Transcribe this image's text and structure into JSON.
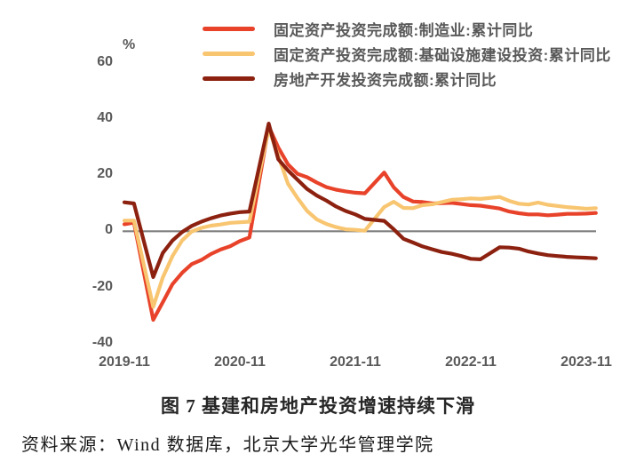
{
  "source": "资料来源：Wind 数据库，北京大学光华管理学院",
  "chart_data": {
    "type": "line",
    "title": "图 7 基建和房地产投资增速持续下滑",
    "ylabel": "%",
    "ylim": [
      -40,
      60
    ],
    "y_ticks": [
      60,
      40,
      20,
      0,
      -20,
      -40
    ],
    "x_tick_labels": [
      "2019-11",
      "2020-11",
      "2021-11",
      "2022-11",
      "2023-11"
    ],
    "x_tick_positions_months": [
      0,
      12,
      24,
      36,
      48
    ],
    "x_unit": "months since 2019-11 (January values omitted, cumulative YoY %)",
    "grid": "none (zero baseline only)",
    "legend_position": "top",
    "zero_line_color": "#7F7F7F",
    "series": [
      {
        "name": "固定资产投资完成额:制造业:累计同比",
        "color": "#E8432A",
        "points": [
          [
            0,
            2.5
          ],
          [
            1,
            3.1
          ],
          [
            3,
            -31.5
          ],
          [
            4,
            -25.2
          ],
          [
            5,
            -18.8
          ],
          [
            6,
            -14.8
          ],
          [
            7,
            -11.7
          ],
          [
            8,
            -10.2
          ],
          [
            9,
            -8.1
          ],
          [
            10,
            -6.5
          ],
          [
            11,
            -5.3
          ],
          [
            12,
            -3.5
          ],
          [
            13,
            -2.2
          ],
          [
            15,
            37.3
          ],
          [
            16,
            29.8
          ],
          [
            17,
            23.8
          ],
          [
            18,
            20.4
          ],
          [
            19,
            19.2
          ],
          [
            20,
            17.3
          ],
          [
            21,
            15.7
          ],
          [
            22,
            14.8
          ],
          [
            23,
            14.2
          ],
          [
            24,
            13.7
          ],
          [
            25,
            13.5
          ],
          [
            27,
            20.9
          ],
          [
            28,
            15.6
          ],
          [
            29,
            12.2
          ],
          [
            30,
            10.6
          ],
          [
            31,
            10.4
          ],
          [
            32,
            9.9
          ],
          [
            33,
            10.0
          ],
          [
            34,
            10.1
          ],
          [
            35,
            9.7
          ],
          [
            36,
            9.3
          ],
          [
            37,
            9.1
          ],
          [
            39,
            8.1
          ],
          [
            40,
            7.0
          ],
          [
            41,
            6.4
          ],
          [
            42,
            6.0
          ],
          [
            43,
            6.0
          ],
          [
            44,
            5.7
          ],
          [
            45,
            5.9
          ],
          [
            46,
            6.2
          ],
          [
            47,
            6.2
          ],
          [
            48,
            6.3
          ],
          [
            49,
            6.5
          ]
        ]
      },
      {
        "name": "固定资产投资完成额:基础设施建设投资:累计同比",
        "color": "#F8C571",
        "points": [
          [
            0,
            3.8
          ],
          [
            1,
            3.8
          ],
          [
            3,
            -26.9
          ],
          [
            4,
            -16.4
          ],
          [
            5,
            -8.8
          ],
          [
            6,
            -3.3
          ],
          [
            7,
            -0.1
          ],
          [
            8,
            1.2
          ],
          [
            9,
            2.0
          ],
          [
            10,
            2.4
          ],
          [
            11,
            3.0
          ],
          [
            12,
            3.2
          ],
          [
            13,
            3.4
          ],
          [
            15,
            36.6
          ],
          [
            16,
            26.8
          ],
          [
            17,
            16.9
          ],
          [
            18,
            11.8
          ],
          [
            19,
            7.2
          ],
          [
            20,
            4.2
          ],
          [
            21,
            2.6
          ],
          [
            22,
            1.5
          ],
          [
            23,
            0.7
          ],
          [
            24,
            0.5
          ],
          [
            25,
            0.2
          ],
          [
            27,
            8.6
          ],
          [
            28,
            10.5
          ],
          [
            29,
            8.3
          ],
          [
            30,
            8.2
          ],
          [
            31,
            9.3
          ],
          [
            32,
            9.6
          ],
          [
            33,
            10.4
          ],
          [
            34,
            11.2
          ],
          [
            35,
            11.4
          ],
          [
            36,
            11.7
          ],
          [
            37,
            11.5
          ],
          [
            39,
            12.2
          ],
          [
            40,
            10.8
          ],
          [
            41,
            9.8
          ],
          [
            42,
            9.5
          ],
          [
            43,
            10.2
          ],
          [
            44,
            9.4
          ],
          [
            45,
            9.0
          ],
          [
            46,
            8.6
          ],
          [
            47,
            8.3
          ],
          [
            48,
            8.0
          ],
          [
            49,
            8.2
          ]
        ]
      },
      {
        "name": "房地产开发投资完成额:累计同比",
        "color": "#8C2110",
        "points": [
          [
            0,
            10.3
          ],
          [
            1,
            9.9
          ],
          [
            3,
            -16.3
          ],
          [
            4,
            -7.7
          ],
          [
            5,
            -3.3
          ],
          [
            6,
            -0.3
          ],
          [
            7,
            1.9
          ],
          [
            8,
            3.4
          ],
          [
            9,
            4.6
          ],
          [
            10,
            5.6
          ],
          [
            11,
            6.3
          ],
          [
            12,
            6.8
          ],
          [
            13,
            7.0
          ],
          [
            15,
            38.3
          ],
          [
            16,
            25.6
          ],
          [
            17,
            21.6
          ],
          [
            18,
            18.3
          ],
          [
            19,
            15.0
          ],
          [
            20,
            12.7
          ],
          [
            21,
            10.9
          ],
          [
            22,
            8.8
          ],
          [
            23,
            7.2
          ],
          [
            24,
            6.0
          ],
          [
            25,
            4.4
          ],
          [
            27,
            3.7
          ],
          [
            28,
            0.7
          ],
          [
            29,
            -2.7
          ],
          [
            30,
            -4.0
          ],
          [
            31,
            -5.4
          ],
          [
            32,
            -6.4
          ],
          [
            33,
            -7.4
          ],
          [
            34,
            -8.0
          ],
          [
            35,
            -8.8
          ],
          [
            36,
            -9.8
          ],
          [
            37,
            -10.0
          ],
          [
            39,
            -5.7
          ],
          [
            40,
            -5.8
          ],
          [
            41,
            -6.2
          ],
          [
            42,
            -7.2
          ],
          [
            43,
            -7.9
          ],
          [
            44,
            -8.5
          ],
          [
            45,
            -8.8
          ],
          [
            46,
            -9.1
          ],
          [
            47,
            -9.3
          ],
          [
            48,
            -9.4
          ],
          [
            49,
            -9.6
          ]
        ]
      }
    ]
  }
}
